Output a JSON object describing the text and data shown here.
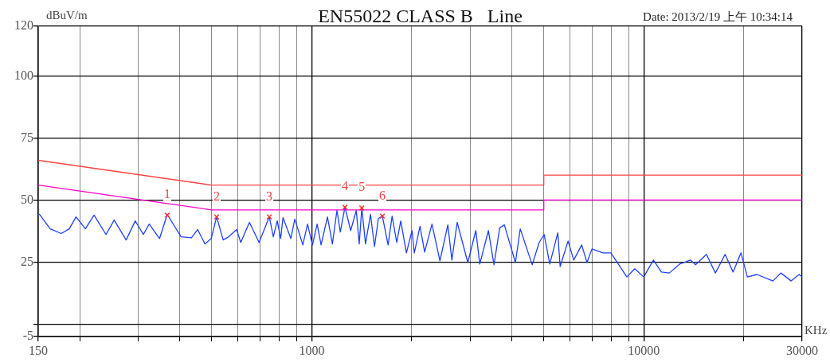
{
  "chart_data": {
    "type": "line",
    "title": "EN55022 CLASS B   Line",
    "xlabel": "KHz",
    "ylabel": "dBuV/m",
    "annotations": [
      "Date: 2013/2/19 上午 10:34:14",
      {
        "text": "1",
        "x": 367,
        "y": 43.9
      },
      {
        "text": "2",
        "x": 517,
        "y": 43.2
      },
      {
        "text": "3",
        "x": 745,
        "y": 43.2
      },
      {
        "text": "4",
        "x": 1259,
        "y": 47.1
      },
      {
        "text": "5",
        "x": 1415,
        "y": 46.8
      },
      {
        "text": "6",
        "x": 1632,
        "y": 43.5
      }
    ],
    "log": "x",
    "grid": true,
    "legend": false,
    "xlim": [
      150,
      30000
    ],
    "xticks": [
      150,
      {
        "value": 200,
        "label": null
      },
      {
        "value": 300,
        "label": null
      },
      {
        "value": 400,
        "label": null
      },
      {
        "value": 500,
        "label": null
      },
      {
        "value": 600,
        "label": null
      },
      {
        "value": 700,
        "label": null
      },
      {
        "value": 800,
        "label": null
      },
      {
        "value": 900,
        "label": null
      },
      1000,
      {
        "value": 2000,
        "label": null
      },
      {
        "value": 3000,
        "label": null
      },
      {
        "value": 4000,
        "label": null
      },
      {
        "value": 5000,
        "label": null
      },
      {
        "value": 6000,
        "label": null
      },
      {
        "value": 7000,
        "label": null
      },
      {
        "value": 8000,
        "label": null
      },
      {
        "value": 9000,
        "label": null
      },
      10000,
      {
        "value": 20000,
        "label": null
      },
      30000
    ],
    "ylim": [
      -5,
      120
    ],
    "yticks": [
      -5,
      {
        "value": 0,
        "label": null
      },
      25,
      50,
      75,
      100,
      120
    ],
    "series": [
      {
        "type": "scatter",
        "marker": "cross",
        "color": "#ff3030",
        "x": [
          367,
          517,
          745,
          1259,
          1415,
          1632
        ],
        "values": [
          43.9,
          43.2,
          43.2,
          47.1,
          46.8,
          43.5
        ]
      },
      {
        "type": "line",
        "marker": "none",
        "color": "#ff4040",
        "x": [
          150,
          500,
          5000,
          5000,
          30000
        ],
        "values": [
          66,
          56,
          56,
          60,
          60
        ]
      },
      {
        "type": "line",
        "marker": "none",
        "color": "#ff00cc",
        "x": [
          150,
          500,
          5000,
          5000,
          30000
        ],
        "values": [
          56,
          46,
          46,
          50,
          50
        ]
      },
      {
        "type": "line",
        "marker": "none",
        "color": "#1f3fff",
        "x": [
          151,
          163,
          176,
          186,
          195,
          208,
          221,
          240,
          254,
          276,
          294,
          311,
          324,
          348,
          367,
          404,
          434,
          453,
          477,
          498,
          517,
          541,
          562,
          594,
          611,
          649,
          694,
          745,
          766,
          787,
          806,
          819,
          865,
          889,
          940,
          971,
          1005,
          1038,
          1067,
          1115,
          1154,
          1191,
          1219,
          1259,
          1310,
          1362,
          1390,
          1415,
          1452,
          1503,
          1545,
          1588,
          1632,
          1698,
          1746,
          1803,
          1854,
          1928,
          2005,
          2037,
          2119,
          2188,
          2302,
          2433,
          2570,
          2643,
          2742,
          2952,
          3120,
          3207,
          3405,
          3540,
          3682,
          3803,
          4107,
          4247,
          4614,
          4842,
          5013,
          5212,
          5510,
          5600,
          5918,
          6153,
          6503,
          6747,
          6984,
          7534,
          7964,
          8415,
          8894,
          9399,
          10000,
          10694,
          11301,
          11943,
          12827,
          13839,
          14325,
          15450,
          16440,
          17580,
          18585,
          19635,
          20520,
          21930,
          24495,
          25890,
          27810,
          29385,
          30000
        ],
        "values": [
          44.4,
          38.4,
          36.5,
          38.4,
          43.2,
          38.4,
          43.9,
          36.1,
          41.9,
          33.9,
          41.6,
          36.1,
          40.3,
          34.5,
          44.2,
          35.2,
          34.8,
          38.1,
          32.3,
          34.5,
          43.2,
          33.9,
          35.2,
          38.1,
          32.9,
          41,
          32.9,
          43.2,
          35.2,
          41.6,
          34.5,
          42.9,
          34.5,
          42.3,
          31.9,
          40.3,
          31.9,
          40.3,
          31.9,
          43.2,
          32.3,
          45.8,
          37.1,
          47.1,
          37.7,
          45.8,
          32.3,
          46.8,
          32.3,
          44.2,
          31.3,
          42.6,
          43.5,
          31.9,
          43.5,
          32.9,
          41.6,
          28.7,
          37.7,
          28.7,
          39.4,
          29,
          40.3,
          25.5,
          40,
          25.8,
          41,
          24.8,
          37.7,
          24.2,
          37.7,
          23.9,
          38.7,
          40,
          24.8,
          38.4,
          23.9,
          32.9,
          36.1,
          24.2,
          36.8,
          23.2,
          33.5,
          25.8,
          31.9,
          24.8,
          30.3,
          28.7,
          28.7,
          23.9,
          19,
          22.3,
          19,
          25.8,
          21,
          20.6,
          24.2,
          25.8,
          23.9,
          28.1,
          20.6,
          28.1,
          21,
          28.7,
          19,
          20,
          17.4,
          20.6,
          17.4,
          20,
          19
        ]
      }
    ]
  }
}
